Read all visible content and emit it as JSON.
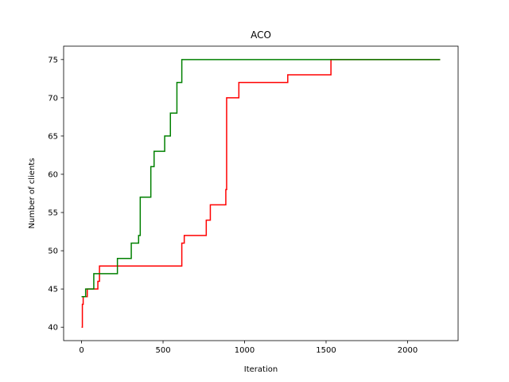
{
  "chart_data": {
    "type": "line",
    "title": "ACO",
    "xlabel": "Iteration",
    "ylabel": "Number of clients",
    "xlim": [
      -110,
      2310
    ],
    "ylim": [
      38.25,
      76.75
    ],
    "xticks": [
      0,
      500,
      1000,
      1500,
      2000
    ],
    "yticks": [
      40,
      45,
      50,
      55,
      60,
      65,
      70,
      75
    ],
    "grid": false,
    "legend": "none",
    "series": [
      {
        "color": "#ff0000",
        "step": true,
        "points": [
          [
            0,
            40
          ],
          [
            5,
            43
          ],
          [
            10,
            44
          ],
          [
            30,
            44
          ],
          [
            35,
            45
          ],
          [
            95,
            45
          ],
          [
            100,
            46
          ],
          [
            110,
            48
          ],
          [
            610,
            48
          ],
          [
            615,
            51
          ],
          [
            630,
            52
          ],
          [
            760,
            52
          ],
          [
            765,
            54
          ],
          [
            790,
            56
          ],
          [
            880,
            56
          ],
          [
            885,
            58
          ],
          [
            890,
            70
          ],
          [
            960,
            70
          ],
          [
            965,
            72
          ],
          [
            1260,
            72
          ],
          [
            1265,
            73
          ],
          [
            1525,
            73
          ],
          [
            1530,
            75
          ],
          [
            2200,
            75
          ]
        ]
      },
      {
        "color": "#008000",
        "step": true,
        "points": [
          [
            0,
            44
          ],
          [
            20,
            44
          ],
          [
            25,
            45
          ],
          [
            70,
            45
          ],
          [
            75,
            47
          ],
          [
            210,
            47
          ],
          [
            220,
            49
          ],
          [
            300,
            49
          ],
          [
            305,
            51
          ],
          [
            345,
            51
          ],
          [
            350,
            52
          ],
          [
            360,
            57
          ],
          [
            420,
            57
          ],
          [
            425,
            61
          ],
          [
            445,
            63
          ],
          [
            505,
            63
          ],
          [
            510,
            65
          ],
          [
            540,
            65
          ],
          [
            545,
            68
          ],
          [
            580,
            68
          ],
          [
            585,
            72
          ],
          [
            610,
            72
          ],
          [
            615,
            75
          ],
          [
            2200,
            75
          ]
        ]
      }
    ]
  }
}
